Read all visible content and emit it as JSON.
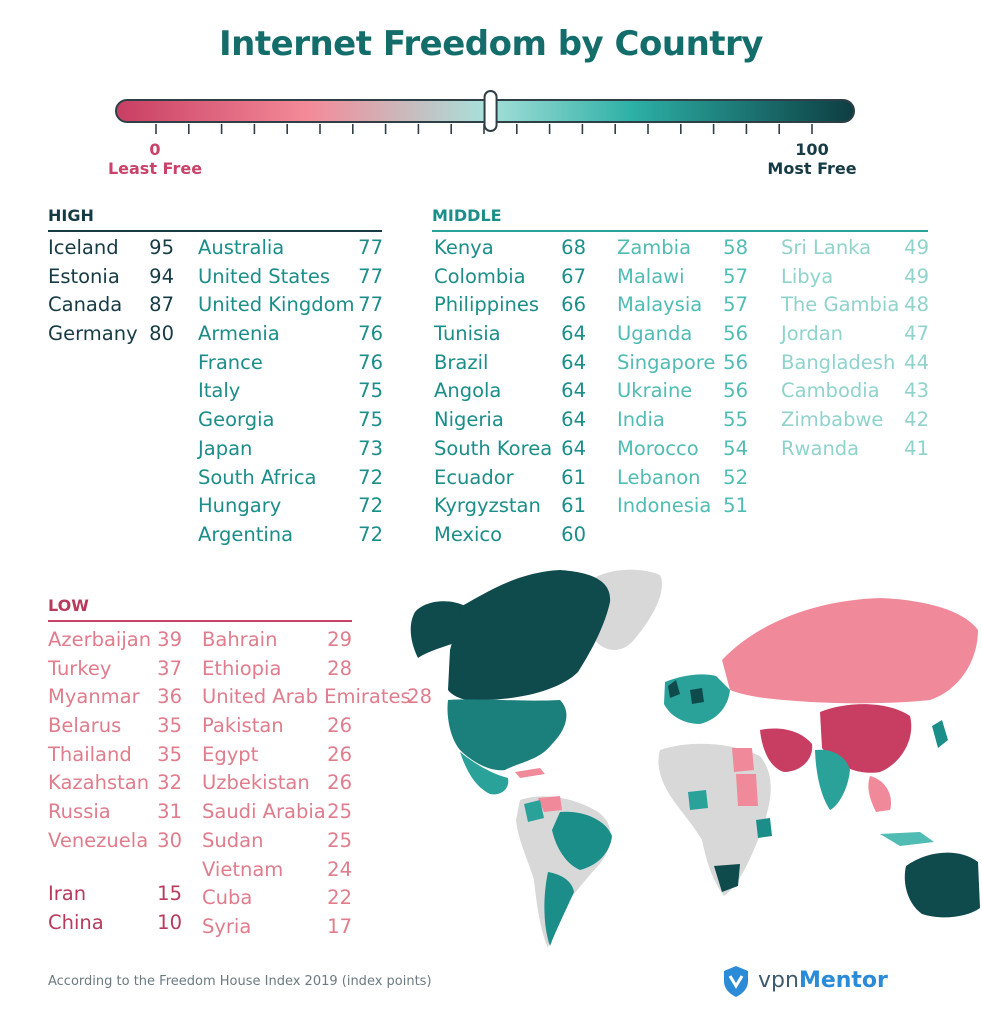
{
  "title": "Internet Freedom by Country",
  "scale": {
    "min_value": "0",
    "min_label": "Least Free",
    "max_value": "100",
    "max_label": "Most Free",
    "indicator_value": 51,
    "colors": {
      "least": "#c83e63",
      "mid_low": "#f48a98",
      "mid": "#a8e0da",
      "mid_high": "#2cb0a6",
      "most": "#0d3d42"
    }
  },
  "sections": {
    "high": {
      "label": "HIGH",
      "columns": [
        [
          [
            "Iceland",
            "95"
          ],
          [
            "Estonia",
            "94"
          ],
          [
            "Canada",
            "87"
          ],
          [
            "Germany",
            "80"
          ]
        ],
        [
          [
            "Australia",
            "77"
          ],
          [
            "United States",
            "77"
          ],
          [
            "United Kingdom",
            "77"
          ],
          [
            "Armenia",
            "76"
          ],
          [
            "France",
            "76"
          ],
          [
            "Italy",
            "75"
          ],
          [
            "Georgia",
            "75"
          ],
          [
            "Japan",
            "73"
          ],
          [
            "South Africa",
            "72"
          ],
          [
            "Hungary",
            "72"
          ],
          [
            "Argentina",
            "72"
          ]
        ]
      ]
    },
    "middle": {
      "label": "MIDDLE",
      "columns": [
        [
          [
            "Kenya",
            "68"
          ],
          [
            "Colombia",
            "67"
          ],
          [
            "Philippines",
            "66"
          ],
          [
            "Tunisia",
            "64"
          ],
          [
            "Brazil",
            "64"
          ],
          [
            "Angola",
            "64"
          ],
          [
            "Nigeria",
            "64"
          ],
          [
            "South Korea",
            "64"
          ],
          [
            "Ecuador",
            "61"
          ],
          [
            "Kyrgyzstan",
            "61"
          ],
          [
            "Mexico",
            "60"
          ]
        ],
        [
          [
            "Zambia",
            "58"
          ],
          [
            "Malawi",
            "57"
          ],
          [
            "Malaysia",
            "57"
          ],
          [
            "Uganda",
            "56"
          ],
          [
            "Singapore",
            "56"
          ],
          [
            "Ukraine",
            "56"
          ],
          [
            "India",
            "55"
          ],
          [
            "Morocco",
            "54"
          ],
          [
            "Lebanon",
            "52"
          ],
          [
            "Indonesia",
            "51"
          ]
        ],
        [
          [
            "Sri Lanka",
            "49"
          ],
          [
            "Libya",
            "49"
          ],
          [
            "The Gambia",
            "48"
          ],
          [
            "Jordan",
            "47"
          ],
          [
            "Bangladesh",
            "44"
          ],
          [
            "Cambodia",
            "43"
          ],
          [
            "Zimbabwe",
            "42"
          ],
          [
            "Rwanda",
            "41"
          ]
        ]
      ]
    },
    "low": {
      "label": "LOW",
      "columns": [
        [
          [
            "Azerbaijan",
            "39"
          ],
          [
            "Turkey",
            "37"
          ],
          [
            "Myanmar",
            "36"
          ],
          [
            "Belarus",
            "35"
          ],
          [
            "Thailand",
            "35"
          ],
          [
            "Kazahstan",
            "32"
          ],
          [
            "Russia",
            "31"
          ],
          [
            "Venezuela",
            "30"
          ]
        ],
        [
          [
            "Bahrain",
            "29"
          ],
          [
            "Ethiopia",
            "28"
          ],
          [
            "United Arab Emirates",
            "28"
          ],
          [
            "Pakistan",
            "26"
          ],
          [
            "Egypt",
            "26"
          ],
          [
            "Uzbekistan",
            "26"
          ],
          [
            "Saudi Arabia",
            "25"
          ],
          [
            "Sudan",
            "25"
          ],
          [
            "Vietnam",
            "24"
          ],
          [
            "Cuba",
            "22"
          ],
          [
            "Syria",
            "17"
          ]
        ]
      ],
      "lowest": [
        [
          "Iran",
          "15"
        ],
        [
          "China",
          "10"
        ]
      ]
    }
  },
  "footnote": "According to the Freedom House Index 2019 (index points)",
  "brand": {
    "part1": "vpn",
    "part2": "Mentor",
    "icon": "shield-logo-icon"
  }
}
